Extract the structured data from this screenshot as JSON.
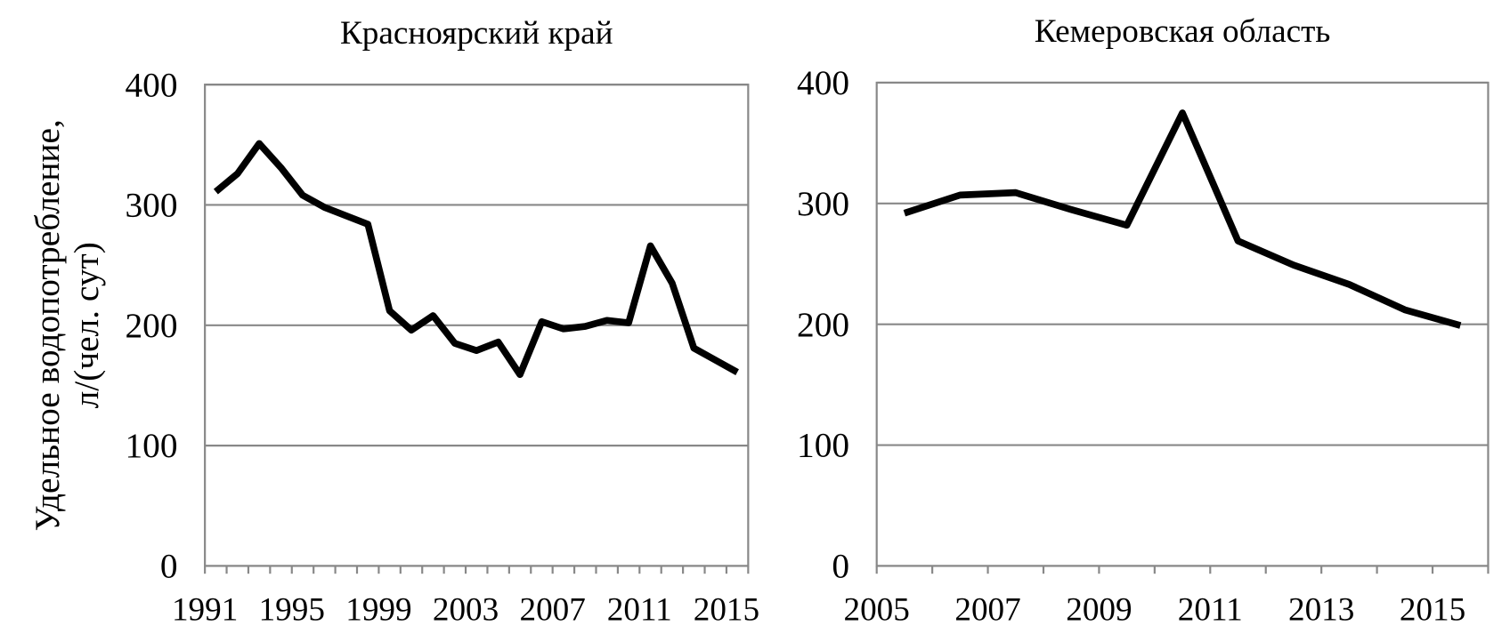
{
  "chart_data": [
    {
      "type": "line",
      "title": "Красноярский край",
      "y_label": [
        "Удельное водопотребление,",
        "л/(чел. сут)"
      ],
      "categories": [
        "1991",
        null,
        null,
        null,
        "1995",
        null,
        null,
        null,
        "1999",
        null,
        null,
        null,
        "2003",
        null,
        null,
        null,
        "2007",
        null,
        null,
        null,
        "2011",
        null,
        null,
        null,
        "2015"
      ],
      "series": [
        {
          "color": "#000000",
          "values": [
            311,
            326,
            351,
            331,
            308,
            298,
            291,
            284,
            212,
            196,
            208,
            185,
            179,
            186,
            159,
            203,
            197,
            199,
            204,
            202,
            266,
            235,
            181,
            171,
            161
          ]
        }
      ],
      "ylim": [
        0,
        400
      ],
      "yticks": [
        0,
        100,
        200,
        300,
        400
      ],
      "grid": true
    },
    {
      "type": "line",
      "title": "Кемеровская область",
      "categories": [
        "2005",
        null,
        "2007",
        null,
        "2009",
        null,
        "2011",
        null,
        "2013",
        null,
        "2015"
      ],
      "series": [
        {
          "color": "#000000",
          "values": [
            292,
            307,
            309,
            295,
            282,
            375,
            269,
            249,
            233,
            212,
            199
          ]
        }
      ],
      "ylim": [
        0,
        400
      ],
      "yticks": [
        0,
        100,
        200,
        300,
        400
      ],
      "grid": true
    }
  ]
}
